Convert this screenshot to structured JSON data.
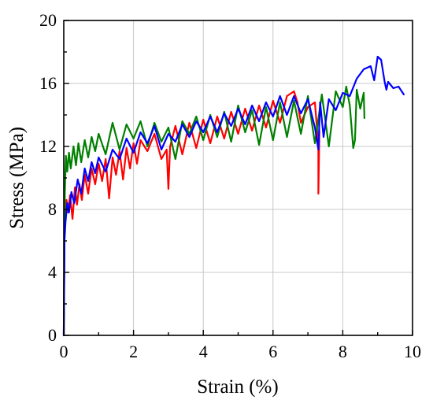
{
  "chart_data": {
    "type": "line",
    "title": "",
    "xlabel": "Strain (%)",
    "ylabel": "Stress (MPa)",
    "xlim": [
      0,
      10
    ],
    "ylim": [
      0,
      20
    ],
    "xticks": [
      "0",
      "2",
      "4",
      "6",
      "8",
      "10"
    ],
    "yticks": [
      "0",
      "4",
      "8",
      "12",
      "16",
      "20"
    ],
    "grid": true,
    "legend": "none",
    "series": [
      {
        "color": "#ff0000",
        "x": [
          0,
          0.02,
          0.05,
          0.08,
          0.12,
          0.18,
          0.25,
          0.32,
          0.38,
          0.45,
          0.52,
          0.6,
          0.7,
          0.8,
          0.9,
          1.0,
          1.1,
          1.2,
          1.3,
          1.4,
          1.5,
          1.6,
          1.7,
          1.8,
          1.9,
          2.0,
          2.1,
          2.2,
          2.4,
          2.6,
          2.8,
          2.95,
          3.0,
          3.05,
          3.2,
          3.4,
          3.6,
          3.8,
          4.0,
          4.2,
          4.4,
          4.6,
          4.8,
          5.0,
          5.2,
          5.4,
          5.6,
          5.8,
          6.0,
          6.2,
          6.4,
          6.6,
          6.7,
          6.8,
          7.0,
          7.2,
          7.3,
          7.3,
          7.33
        ],
        "y": [
          0,
          6.8,
          7.6,
          8.6,
          7.8,
          8.9,
          7.4,
          9.4,
          8.3,
          9.6,
          8.6,
          10.2,
          9.0,
          10.6,
          9.6,
          10.9,
          9.8,
          11.2,
          8.7,
          11.3,
          10.2,
          11.7,
          9.9,
          11.9,
          10.6,
          12.2,
          10.9,
          12.4,
          11.7,
          12.8,
          11.2,
          11.8,
          9.3,
          12.0,
          13.3,
          11.5,
          13.5,
          11.9,
          13.7,
          12.2,
          13.9,
          12.5,
          14.2,
          12.8,
          14.4,
          13.0,
          14.6,
          13.2,
          14.9,
          13.5,
          15.2,
          15.5,
          14.8,
          13.5,
          14.5,
          14.8,
          12.0,
          9.0,
          13.0
        ]
      },
      {
        "color": "#008000",
        "x": [
          0,
          0.03,
          0.06,
          0.1,
          0.15,
          0.2,
          0.28,
          0.35,
          0.42,
          0.5,
          0.6,
          0.7,
          0.8,
          0.9,
          1.0,
          1.2,
          1.4,
          1.6,
          1.8,
          2.0,
          2.2,
          2.4,
          2.6,
          2.8,
          3.0,
          3.2,
          3.4,
          3.6,
          3.8,
          4.0,
          4.2,
          4.4,
          4.6,
          4.8,
          5.0,
          5.2,
          5.4,
          5.6,
          5.8,
          6.0,
          6.2,
          6.4,
          6.6,
          6.8,
          7.0,
          7.2,
          7.4,
          7.6,
          7.8,
          8.0,
          8.1,
          8.2,
          8.3,
          8.35,
          8.4,
          8.5,
          8.6,
          8.62
        ],
        "y": [
          0,
          9.0,
          11.4,
          10.4,
          11.6,
          10.6,
          12.0,
          10.8,
          12.2,
          11.0,
          12.4,
          11.3,
          12.6,
          11.7,
          12.8,
          11.5,
          13.5,
          11.8,
          13.4,
          12.5,
          13.6,
          12.0,
          13.5,
          12.3,
          13.2,
          11.2,
          13.6,
          12.8,
          13.9,
          12.4,
          14.0,
          12.6,
          14.2,
          12.3,
          14.6,
          12.9,
          14.3,
          12.1,
          14.5,
          12.4,
          14.8,
          12.6,
          14.9,
          12.8,
          15.2,
          12.2,
          15.3,
          12.0,
          15.5,
          14.5,
          15.8,
          14.6,
          11.9,
          12.4,
          15.6,
          14.4,
          15.4,
          13.8
        ]
      },
      {
        "color": "#0000ff",
        "x": [
          0,
          0.02,
          0.05,
          0.1,
          0.15,
          0.22,
          0.3,
          0.4,
          0.5,
          0.6,
          0.7,
          0.8,
          0.9,
          1.0,
          1.2,
          1.4,
          1.6,
          1.8,
          2.0,
          2.2,
          2.4,
          2.6,
          2.8,
          3.0,
          3.2,
          3.4,
          3.6,
          3.8,
          4.0,
          4.2,
          4.4,
          4.6,
          4.8,
          5.0,
          5.2,
          5.4,
          5.6,
          5.8,
          6.0,
          6.2,
          6.4,
          6.6,
          6.8,
          7.0,
          7.2,
          7.3,
          7.35,
          7.45,
          7.6,
          7.8,
          8.0,
          8.2,
          8.4,
          8.6,
          8.8,
          8.9,
          9.0,
          9.1,
          9.2,
          9.25,
          9.3,
          9.45,
          9.6,
          9.75
        ],
        "y": [
          0,
          6.0,
          7.2,
          8.4,
          7.8,
          9.1,
          8.4,
          9.9,
          9.0,
          10.6,
          9.8,
          11.0,
          10.3,
          11.3,
          10.4,
          11.8,
          11.2,
          12.5,
          11.6,
          12.9,
          12.2,
          13.3,
          11.8,
          12.8,
          12.3,
          13.4,
          12.6,
          13.6,
          12.9,
          13.9,
          12.9,
          14.1,
          13.3,
          14.4,
          13.4,
          14.6,
          13.6,
          14.8,
          13.9,
          15.2,
          14.0,
          15.2,
          14.1,
          15.0,
          13.2,
          11.8,
          14.8,
          12.6,
          15.0,
          14.3,
          15.4,
          15.2,
          16.3,
          16.9,
          17.1,
          16.2,
          17.7,
          17.5,
          16.1,
          15.6,
          16.1,
          15.7,
          15.8,
          15.3
        ]
      }
    ]
  }
}
